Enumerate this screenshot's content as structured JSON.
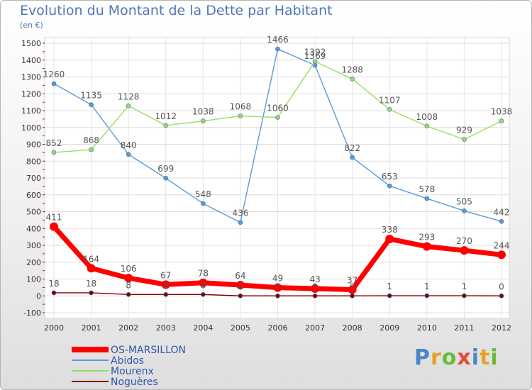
{
  "chart_data": {
    "type": "line",
    "title": "Evolution du Montant de la Dette par Habitant",
    "subtitle": "(en €)",
    "categories": [
      "2000",
      "2001",
      "2002",
      "2003",
      "2004",
      "2005",
      "2006",
      "2007",
      "2008",
      "2009",
      "2010",
      "2011",
      "2012"
    ],
    "ylim": [
      -100,
      1500
    ],
    "yticks": [
      -100,
      0,
      100,
      200,
      300,
      400,
      500,
      600,
      700,
      800,
      900,
      1000,
      1100,
      1200,
      1300,
      1400,
      1500
    ],
    "grid": true,
    "legend_position": "bottom-left",
    "series": [
      {
        "name": "OS-MARSILLON",
        "color": "#ff0000",
        "values": [
          411,
          164,
          106,
          67,
          78,
          64,
          49,
          43,
          37,
          338,
          293,
          270,
          244
        ]
      },
      {
        "name": "Abidos",
        "color": "#5b9bd5",
        "values": [
          1260,
          1135,
          840,
          699,
          548,
          436,
          1466,
          1369,
          822,
          653,
          578,
          505,
          442
        ]
      },
      {
        "name": "Mourenx",
        "color": "#99dd66",
        "values": [
          852,
          868,
          1128,
          1012,
          1038,
          1068,
          1060,
          1392,
          1288,
          1107,
          1008,
          929,
          1038
        ]
      },
      {
        "name": "Noguères",
        "color": "#800000",
        "values": [
          18,
          18,
          8,
          8,
          8,
          0,
          0,
          0,
          0,
          1,
          1,
          1,
          0
        ]
      }
    ]
  },
  "logo": {
    "text": "Proxiti",
    "letters": [
      "P",
      "r",
      "o",
      "x",
      "i",
      "t",
      "i"
    ],
    "colors": [
      "#4a86c8",
      "#e8a020",
      "#6aba3c",
      "#e84a3a",
      "#4a86c8",
      "#e8a020",
      "#6aba3c"
    ]
  }
}
